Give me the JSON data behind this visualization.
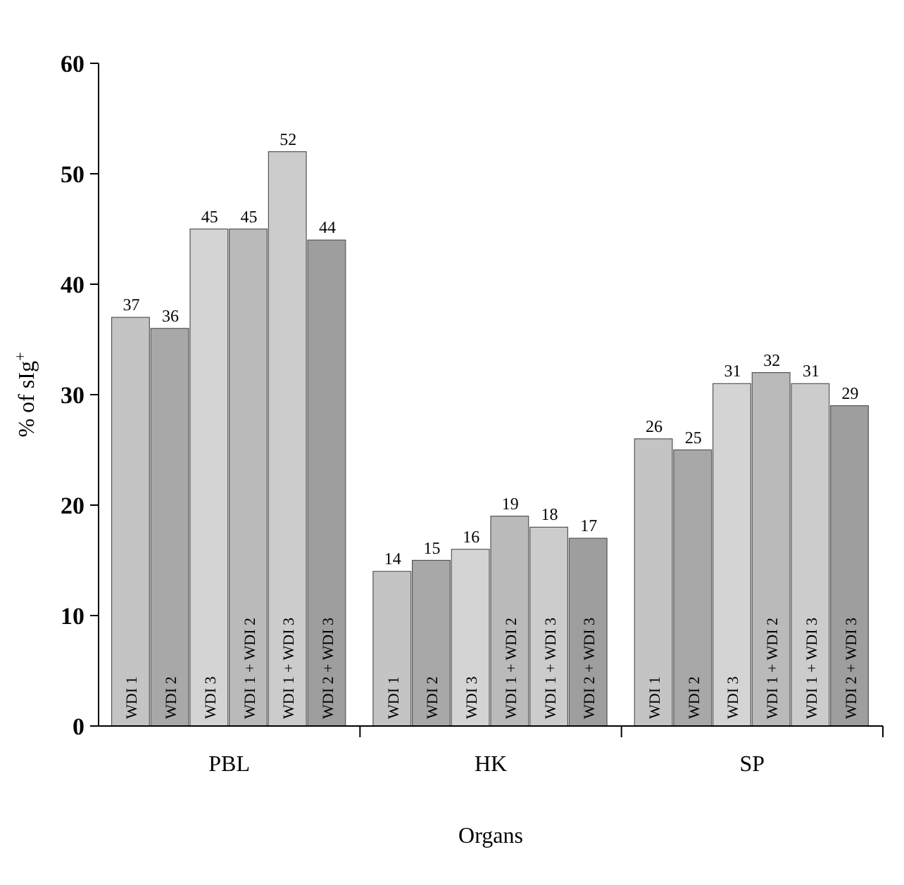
{
  "chart_data": {
    "type": "bar",
    "xlabel": "Organs",
    "ylabel": "% of sIg$^{+}$",
    "categories": [
      "PBL",
      "HK",
      "SP"
    ],
    "ylim": [
      0,
      60
    ],
    "yticks": [
      0,
      10,
      20,
      30,
      40,
      50,
      60
    ],
    "grid": false,
    "data_labels": true,
    "series": [
      {
        "name": "WDI 1",
        "color": "#c4c4c4",
        "values": [
          37,
          14,
          26
        ]
      },
      {
        "name": "WDI 2",
        "color": "#a8a8a8",
        "values": [
          36,
          15,
          25
        ]
      },
      {
        "name": "WDI 3",
        "color": "#d4d4d4",
        "values": [
          45,
          16,
          31
        ]
      },
      {
        "name": "WDI 1 + WDI 2",
        "color": "#bababa",
        "values": [
          45,
          19,
          32
        ]
      },
      {
        "name": "WDI 1 + WDI 3",
        "color": "#cccccc",
        "values": [
          52,
          18,
          31
        ]
      },
      {
        "name": "WDI 2 + WDI 3",
        "color": "#9e9e9e",
        "values": [
          44,
          17,
          29
        ]
      }
    ]
  }
}
